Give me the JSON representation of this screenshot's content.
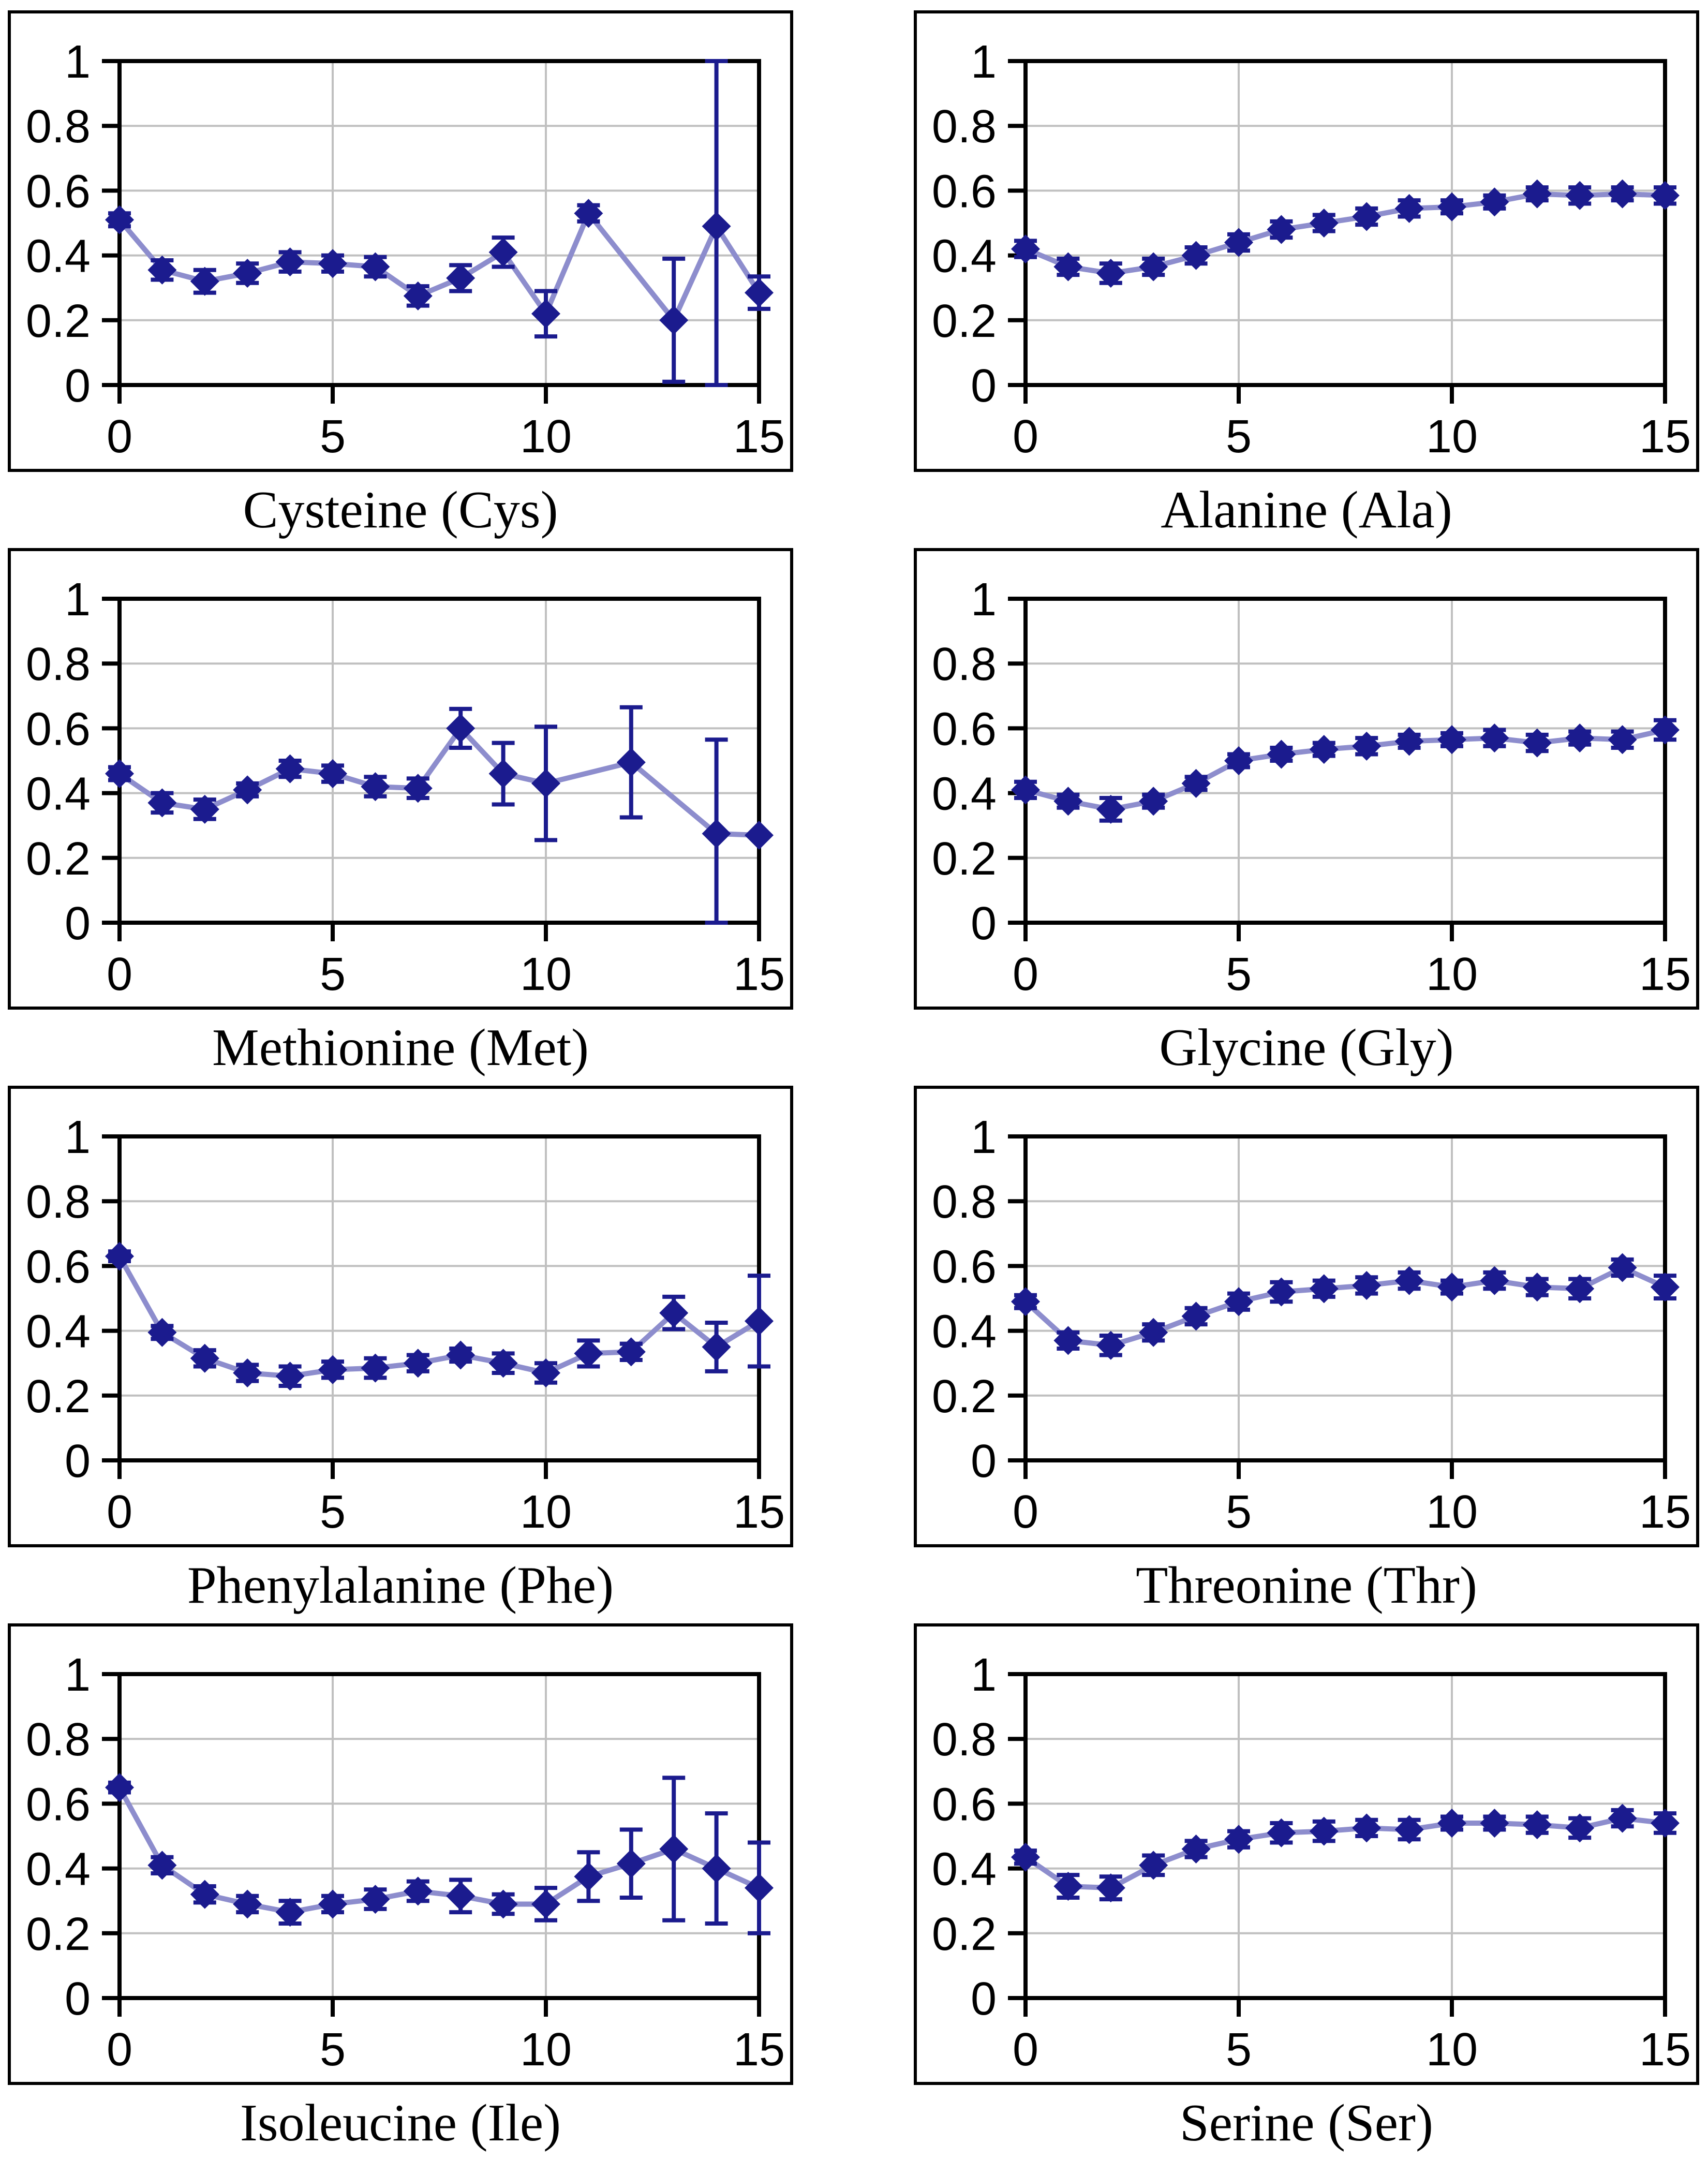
{
  "figure": {
    "description": "Grid of eight amino-acid line charts with error bars",
    "background": "#ffffff"
  },
  "colors": {
    "marker": "#1b1b8e",
    "error_bar": "#1b1b8e",
    "series_line": "#8d8dcd",
    "gridline": "#c0c0c0",
    "axis": "#000000",
    "tick_label": "#000000"
  },
  "axes": {
    "xlim": [
      0,
      15
    ],
    "ylim": [
      0,
      1
    ],
    "x_ticks": [
      0,
      5,
      10,
      15
    ],
    "x_tick_labels": [
      "0",
      "5",
      "10",
      "15"
    ],
    "y_ticks": [
      0,
      0.2,
      0.4,
      0.6,
      0.8,
      1
    ],
    "y_tick_labels": [
      "0",
      "0.2",
      "0.4",
      "0.6",
      "0.8",
      "1"
    ],
    "grid_x": [
      5,
      10
    ],
    "grid_y": [
      0.2,
      0.4,
      0.6,
      0.8
    ],
    "grid": "on",
    "legend": "none"
  },
  "chart_data": [
    {
      "type": "line",
      "title": "Cysteine (Cys)",
      "xlabel": "",
      "ylabel": "",
      "marker": "diamond",
      "error_bars": true,
      "x": [
        0,
        1,
        2,
        3,
        4,
        5,
        6,
        7,
        8,
        9,
        10,
        11,
        13,
        14,
        15
      ],
      "y": [
        0.51,
        0.355,
        0.32,
        0.345,
        0.38,
        0.375,
        0.365,
        0.275,
        0.33,
        0.41,
        0.22,
        0.53,
        0.2,
        0.49,
        0.285
      ],
      "err": [
        0.02,
        0.03,
        0.035,
        0.03,
        0.03,
        0.025,
        0.03,
        0.03,
        0.04,
        0.045,
        0.07,
        0.025,
        0.19,
        0.51,
        0.05
      ]
    },
    {
      "type": "line",
      "title": "Alanine (Ala)",
      "xlabel": "",
      "ylabel": "",
      "marker": "diamond",
      "error_bars": true,
      "x": [
        0,
        1,
        2,
        3,
        4,
        5,
        6,
        7,
        8,
        9,
        10,
        11,
        12,
        13,
        14,
        15
      ],
      "y": [
        0.42,
        0.365,
        0.345,
        0.365,
        0.4,
        0.44,
        0.48,
        0.5,
        0.52,
        0.545,
        0.55,
        0.565,
        0.59,
        0.585,
        0.59,
        0.585
      ],
      "err": [
        0.025,
        0.025,
        0.03,
        0.025,
        0.025,
        0.025,
        0.025,
        0.025,
        0.025,
        0.025,
        0.02,
        0.02,
        0.02,
        0.025,
        0.02,
        0.025
      ]
    },
    {
      "type": "line",
      "title": "Methionine (Met)",
      "xlabel": "",
      "ylabel": "",
      "marker": "diamond",
      "error_bars": true,
      "x": [
        0,
        1,
        2,
        3,
        4,
        5,
        6,
        7,
        8,
        9,
        10,
        12,
        14,
        15
      ],
      "y": [
        0.46,
        0.37,
        0.35,
        0.41,
        0.475,
        0.46,
        0.42,
        0.415,
        0.6,
        0.46,
        0.43,
        0.495,
        0.275,
        0.27
      ],
      "err": [
        0.02,
        0.03,
        0.03,
        0.02,
        0.025,
        0.025,
        0.03,
        0.03,
        0.06,
        0.095,
        0.175,
        0.17,
        0.29,
        0
      ]
    },
    {
      "type": "line",
      "title": "Glycine (Gly)",
      "xlabel": "",
      "ylabel": "",
      "marker": "diamond",
      "error_bars": true,
      "x": [
        0,
        1,
        2,
        3,
        4,
        5,
        6,
        7,
        8,
        9,
        10,
        11,
        12,
        13,
        14,
        15
      ],
      "y": [
        0.41,
        0.375,
        0.35,
        0.375,
        0.43,
        0.5,
        0.52,
        0.535,
        0.545,
        0.56,
        0.565,
        0.57,
        0.555,
        0.57,
        0.565,
        0.595
      ],
      "err": [
        0.025,
        0.02,
        0.035,
        0.02,
        0.02,
        0.02,
        0.02,
        0.02,
        0.025,
        0.02,
        0.02,
        0.025,
        0.025,
        0.02,
        0.025,
        0.03
      ]
    },
    {
      "type": "line",
      "title": "Phenylalanine (Phe)",
      "xlabel": "",
      "ylabel": "",
      "marker": "diamond",
      "error_bars": true,
      "x": [
        0,
        1,
        2,
        3,
        4,
        5,
        6,
        7,
        8,
        9,
        10,
        11,
        12,
        13,
        14,
        15
      ],
      "y": [
        0.63,
        0.395,
        0.315,
        0.27,
        0.26,
        0.28,
        0.285,
        0.3,
        0.325,
        0.3,
        0.27,
        0.33,
        0.335,
        0.455,
        0.35,
        0.43
      ],
      "err": [
        0.015,
        0.02,
        0.025,
        0.025,
        0.03,
        0.025,
        0.03,
        0.025,
        0.02,
        0.03,
        0.03,
        0.04,
        0.025,
        0.05,
        0.075,
        0.14
      ]
    },
    {
      "type": "line",
      "title": "Threonine (Thr)",
      "xlabel": "",
      "ylabel": "",
      "marker": "diamond",
      "error_bars": true,
      "x": [
        0,
        1,
        2,
        3,
        4,
        5,
        6,
        7,
        8,
        9,
        10,
        11,
        12,
        13,
        14,
        15
      ],
      "y": [
        0.49,
        0.37,
        0.355,
        0.395,
        0.445,
        0.49,
        0.52,
        0.53,
        0.54,
        0.555,
        0.535,
        0.555,
        0.535,
        0.53,
        0.595,
        0.535
      ],
      "err": [
        0.02,
        0.025,
        0.03,
        0.025,
        0.025,
        0.025,
        0.03,
        0.025,
        0.025,
        0.025,
        0.02,
        0.025,
        0.025,
        0.03,
        0.025,
        0.035
      ]
    },
    {
      "type": "line",
      "title": "Isoleucine (Ile)",
      "xlabel": "",
      "ylabel": "",
      "marker": "diamond",
      "error_bars": true,
      "x": [
        0,
        1,
        2,
        3,
        4,
        5,
        6,
        7,
        8,
        9,
        10,
        11,
        12,
        13,
        14,
        15
      ],
      "y": [
        0.65,
        0.41,
        0.32,
        0.29,
        0.265,
        0.29,
        0.305,
        0.33,
        0.315,
        0.29,
        0.29,
        0.375,
        0.415,
        0.46,
        0.4,
        0.34
      ],
      "err": [
        0.015,
        0.025,
        0.025,
        0.025,
        0.035,
        0.025,
        0.03,
        0.03,
        0.05,
        0.03,
        0.05,
        0.075,
        0.105,
        0.22,
        0.17,
        0.14
      ]
    },
    {
      "type": "line",
      "title": "Serine (Ser)",
      "xlabel": "",
      "ylabel": "",
      "marker": "diamond",
      "error_bars": true,
      "x": [
        0,
        1,
        2,
        3,
        4,
        5,
        6,
        7,
        8,
        9,
        10,
        11,
        12,
        13,
        14,
        15
      ],
      "y": [
        0.435,
        0.345,
        0.34,
        0.41,
        0.46,
        0.49,
        0.51,
        0.515,
        0.525,
        0.52,
        0.54,
        0.54,
        0.535,
        0.525,
        0.555,
        0.54
      ],
      "err": [
        0.02,
        0.035,
        0.035,
        0.03,
        0.025,
        0.025,
        0.03,
        0.03,
        0.025,
        0.03,
        0.02,
        0.02,
        0.025,
        0.03,
        0.025,
        0.03
      ]
    }
  ]
}
